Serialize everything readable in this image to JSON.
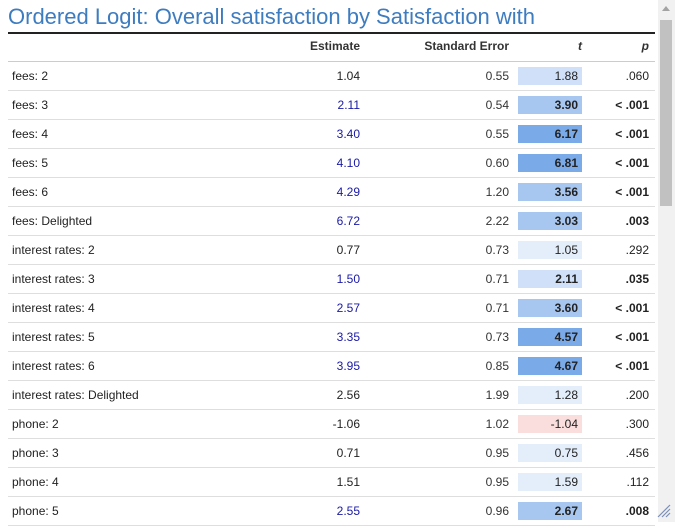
{
  "title": "Ordered Logit: Overall satisfaction by Satisfaction with",
  "columns": {
    "estimate": "Estimate",
    "std_error": "Standard Error",
    "t": "t",
    "p": "p"
  },
  "colors": {
    "title": "#3e7cc0",
    "significant_estimate": "#1a1aa6",
    "default_text": "#222222",
    "t_strong": "#7aaae8",
    "t_medium": "#a7c7f0",
    "t_weak": "#cfe0f8",
    "t_faint": "#e4eefb",
    "t_negative": "#fadddd"
  },
  "rows": [
    {
      "label": "fees: 2",
      "estimate": "1.04",
      "se": "0.55",
      "t": "1.88",
      "p": ".060",
      "sig": false,
      "shade": "t_weak"
    },
    {
      "label": "fees: 3",
      "estimate": "2.11",
      "se": "0.54",
      "t": "3.90",
      "p": "< .001",
      "sig": true,
      "shade": "t_medium"
    },
    {
      "label": "fees: 4",
      "estimate": "3.40",
      "se": "0.55",
      "t": "6.17",
      "p": "< .001",
      "sig": true,
      "shade": "t_strong"
    },
    {
      "label": "fees: 5",
      "estimate": "4.10",
      "se": "0.60",
      "t": "6.81",
      "p": "< .001",
      "sig": true,
      "shade": "t_strong"
    },
    {
      "label": "fees: 6",
      "estimate": "4.29",
      "se": "1.20",
      "t": "3.56",
      "p": "< .001",
      "sig": true,
      "shade": "t_medium"
    },
    {
      "label": "fees: Delighted",
      "estimate": "6.72",
      "se": "2.22",
      "t": "3.03",
      "p": ".003",
      "sig": true,
      "shade": "t_medium"
    },
    {
      "label": "interest rates: 2",
      "estimate": "0.77",
      "se": "0.73",
      "t": "1.05",
      "p": ".292",
      "sig": false,
      "shade": "t_faint"
    },
    {
      "label": "interest rates: 3",
      "estimate": "1.50",
      "se": "0.71",
      "t": "2.11",
      "p": ".035",
      "sig": true,
      "shade": "t_weak"
    },
    {
      "label": "interest rates: 4",
      "estimate": "2.57",
      "se": "0.71",
      "t": "3.60",
      "p": "< .001",
      "sig": true,
      "shade": "t_medium"
    },
    {
      "label": "interest rates: 5",
      "estimate": "3.35",
      "se": "0.73",
      "t": "4.57",
      "p": "< .001",
      "sig": true,
      "shade": "t_strong"
    },
    {
      "label": "interest rates: 6",
      "estimate": "3.95",
      "se": "0.85",
      "t": "4.67",
      "p": "< .001",
      "sig": true,
      "shade": "t_strong"
    },
    {
      "label": "interest rates: Delighted",
      "estimate": "2.56",
      "se": "1.99",
      "t": "1.28",
      "p": ".200",
      "sig": false,
      "shade": "t_faint"
    },
    {
      "label": "phone: 2",
      "estimate": "-1.06",
      "se": "1.02",
      "t": "-1.04",
      "p": ".300",
      "sig": false,
      "shade": "t_negative"
    },
    {
      "label": "phone: 3",
      "estimate": "0.71",
      "se": "0.95",
      "t": "0.75",
      "p": ".456",
      "sig": false,
      "shade": "t_faint"
    },
    {
      "label": "phone: 4",
      "estimate": "1.51",
      "se": "0.95",
      "t": "1.59",
      "p": ".112",
      "sig": false,
      "shade": "t_faint"
    },
    {
      "label": "phone: 5",
      "estimate": "2.55",
      "se": "0.96",
      "t": "2.67",
      "p": ".008",
      "sig": true,
      "shade": "t_medium"
    }
  ]
}
